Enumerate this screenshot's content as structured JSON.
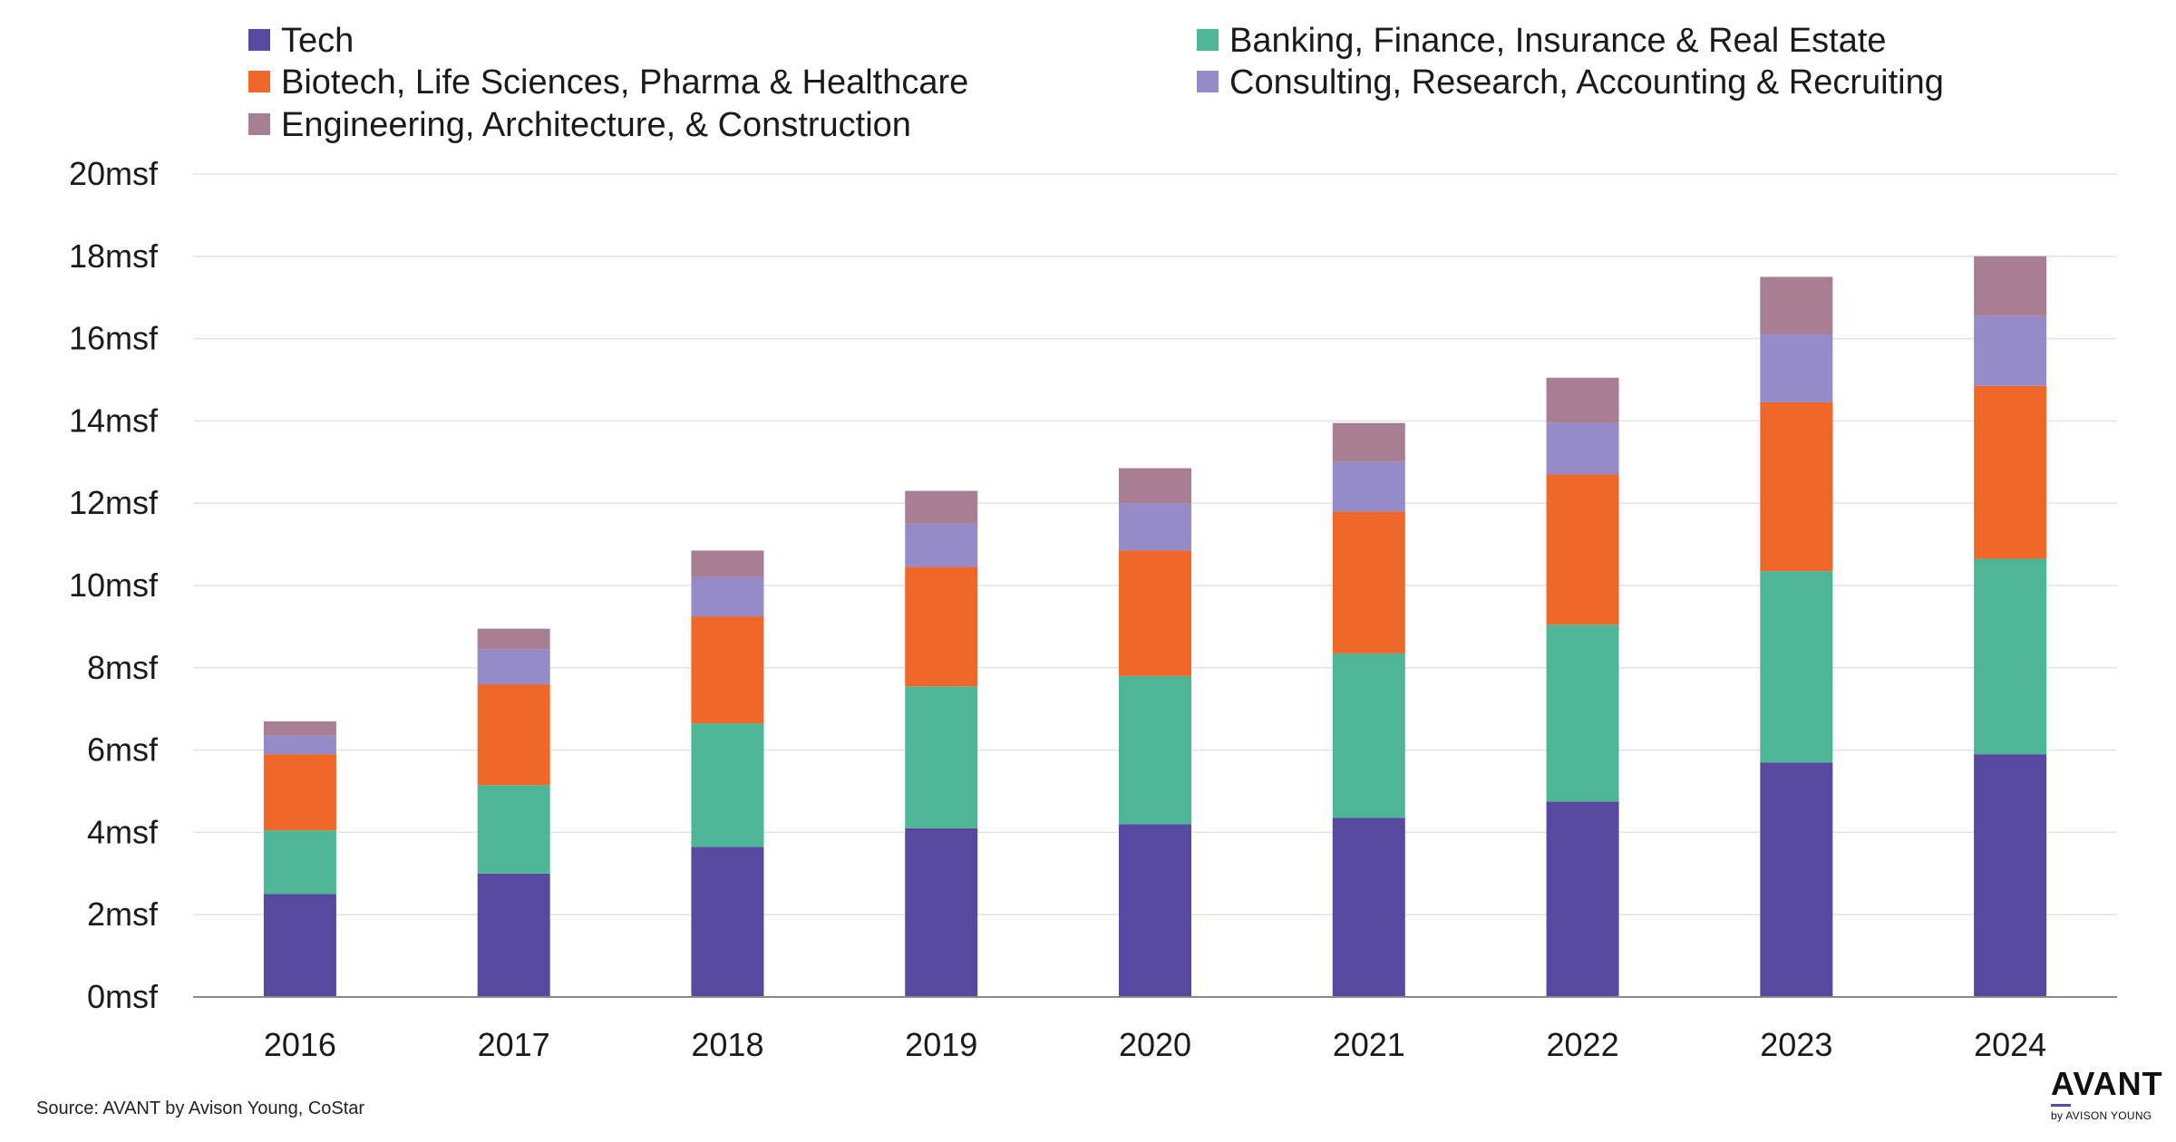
{
  "chart_data": {
    "type": "bar",
    "stacked": true,
    "categories": [
      "2016",
      "2017",
      "2018",
      "2019",
      "2020",
      "2021",
      "2022",
      "2023",
      "2024"
    ],
    "series": [
      {
        "name": "Tech",
        "color": "#574a9e",
        "values": [
          2.5,
          3.0,
          3.65,
          4.1,
          4.2,
          4.35,
          4.75,
          5.7,
          5.9
        ]
      },
      {
        "name": "Banking, Finance, Insurance & Real Estate",
        "color": "#4eb696",
        "values": [
          1.55,
          2.15,
          3.0,
          3.45,
          3.6,
          4.0,
          4.3,
          4.65,
          4.75
        ]
      },
      {
        "name": "Biotech, Life Sciences, Pharma & Healthcare",
        "color": "#ef6729",
        "values": [
          1.85,
          2.45,
          2.6,
          2.9,
          3.05,
          3.45,
          3.65,
          4.1,
          4.2
        ]
      },
      {
        "name": "Consulting, Research, Accounting & Recruiting",
        "color": "#968bc9",
        "values": [
          0.45,
          0.85,
          0.95,
          1.05,
          1.15,
          1.2,
          1.25,
          1.65,
          1.7
        ]
      },
      {
        "name": "Engineering, Architecture, & Construction",
        "color": "#a77e94",
        "values": [
          0.35,
          0.5,
          0.65,
          0.8,
          0.85,
          0.95,
          1.1,
          1.4,
          1.45
        ]
      }
    ],
    "ylim": [
      0,
      20
    ],
    "ytick_values": [
      0,
      2,
      4,
      6,
      8,
      10,
      12,
      14,
      16,
      18,
      20
    ],
    "ytick_labels": [
      "0msf",
      "2msf",
      "4msf",
      "6msf",
      "8msf",
      "10msf",
      "12msf",
      "14msf",
      "16msf",
      "18msf",
      "20msf"
    ],
    "grid": true,
    "legend_position": "top",
    "gridline_color": "#e3e3e3",
    "axis_color": "#888888",
    "text_color": "#1a1a1a"
  },
  "source": "Source: AVANT by Avison Young, CoStar",
  "logo": {
    "word": "AVANT",
    "sub": "by AVISON YOUNG"
  }
}
